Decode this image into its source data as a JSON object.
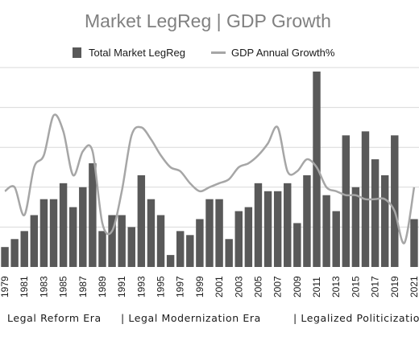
{
  "chart_data": {
    "type": "bar",
    "title": "Market LegReg | GDP Growth",
    "legend": [
      "Total Market LegReg",
      "GDP Annual Growth%"
    ],
    "legend_position": "top",
    "grid": true,
    "categories": [
      "1979",
      "1980",
      "1981",
      "1982",
      "1983",
      "1984",
      "1985",
      "1986",
      "1987",
      "1988",
      "1989",
      "1990",
      "1991",
      "1992",
      "1993",
      "1994",
      "1995",
      "1996",
      "1997",
      "1998",
      "1999",
      "2000",
      "2001",
      "2002",
      "2003",
      "2004",
      "2005",
      "2006",
      "2007",
      "2008",
      "2009",
      "2010",
      "2011",
      "2012",
      "2013",
      "2014",
      "2015",
      "2016",
      "2017",
      "2018",
      "2019",
      "2020",
      "2021"
    ],
    "tick_labels": [
      "1979",
      "1981",
      "1983",
      "1985",
      "1987",
      "1989",
      "1991",
      "1993",
      "1995",
      "1997",
      "1999",
      "2001",
      "2003",
      "2005",
      "2007",
      "2009",
      "2011",
      "2013",
      "2015",
      "2017",
      "2019",
      "2021"
    ],
    "series": [
      {
        "name": "Total Market LegReg",
        "kind": "bar",
        "values": [
          5,
          7,
          9,
          13,
          17,
          17,
          21,
          15,
          20,
          26,
          9,
          13,
          13,
          10,
          23,
          17,
          13,
          3,
          9,
          8,
          12,
          17,
          17,
          7,
          14,
          15,
          21,
          19,
          19,
          21,
          11,
          23,
          49,
          18,
          14,
          33,
          20,
          34,
          27,
          23,
          33,
          0,
          12
        ]
      },
      {
        "name": "GDP Annual Growth%",
        "kind": "line",
        "values": [
          19,
          20,
          13,
          25,
          28,
          38,
          34,
          23,
          29,
          29,
          11,
          9,
          19,
          33,
          35,
          32,
          28,
          25,
          24,
          21,
          19,
          20,
          21,
          22,
          25,
          26,
          28,
          31,
          35,
          24,
          24,
          27,
          25,
          20,
          19,
          18,
          18,
          17,
          17,
          17,
          14,
          6,
          20
        ]
      }
    ],
    "ylim": [
      0,
      50
    ],
    "colors": {
      "bar": "#595959",
      "line": "#a6a6a6",
      "grid": "#d9d9d9",
      "title": "#808080"
    },
    "annotations": [
      "Legal Reform Era",
      "| Legal Modernization Era",
      "| Legalized Politicization"
    ]
  }
}
